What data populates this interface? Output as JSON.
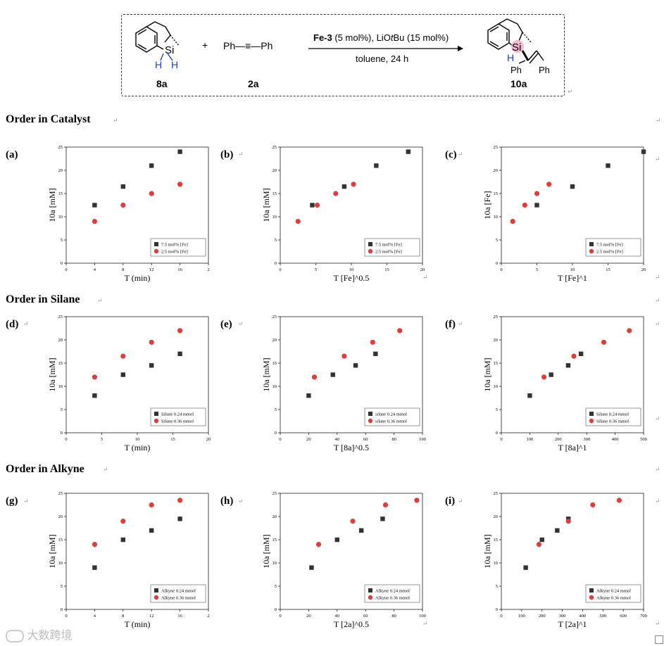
{
  "scheme": {
    "reactant1_label": "8a",
    "reactant2_label": "2a",
    "product_label": "10a",
    "reactant2_formula": "Ph—≡—Ph",
    "plus": "+",
    "condition_catalyst": "Fe-3",
    "condition_catalyst_rest": " (5 mol%), LiO",
    "condition_tBu": "t",
    "condition_tail": "Bu (15 mol%)",
    "condition_solvent": "toluene, 24 h",
    "si": "Si",
    "h": "H",
    "ph": "Ph"
  },
  "sections": [
    {
      "title": "Order in Catalyst"
    },
    {
      "title": "Order in Silane"
    },
    {
      "title": "Order in Alkyne"
    }
  ],
  "panel_labels": [
    "(a)",
    "(b)",
    "(c)",
    "(d)",
    "(e)",
    "(f)",
    "(g)",
    "(h)",
    "(i)"
  ],
  "return_mark": "↵",
  "watermark": "大数跨境",
  "chart_data": [
    {
      "type": "scatter",
      "xlabel": "T (min)",
      "ylabel": "10a [mM]",
      "xlim": [
        0,
        2
      ],
      "xticks": [
        0,
        0.4,
        0.8,
        1.2,
        1.6,
        2
      ],
      "xticklabels": [
        "0",
        "4",
        "8",
        "12",
        "16",
        "2"
      ],
      "ylim": [
        0,
        25
      ],
      "yticks": [
        0,
        5,
        10,
        15,
        20,
        25
      ],
      "series": [
        {
          "name": "7.5 mol% [Fe]",
          "color": "#333333",
          "shape": "square",
          "x": [
            0.4,
            0.8,
            1.2,
            1.6
          ],
          "y": [
            12.5,
            16.5,
            21,
            24
          ]
        },
        {
          "name": "2.5 mol% [Fe]",
          "color": "#e03c3c",
          "shape": "circle",
          "x": [
            0.4,
            0.8,
            1.2,
            1.6
          ],
          "y": [
            9,
            12.5,
            15,
            17
          ]
        }
      ]
    },
    {
      "type": "scatter",
      "xlabel": "T [Fe]^0.5",
      "ylabel": "10a [mM]",
      "xlim": [
        0,
        20
      ],
      "xticks": [
        0,
        5,
        10,
        15,
        20
      ],
      "xticklabels": [
        "0",
        "5",
        "10",
        "15",
        "20"
      ],
      "ylim": [
        0,
        25
      ],
      "yticks": [
        0,
        5,
        10,
        15,
        20,
        25
      ],
      "series": [
        {
          "name": "7.5 mol% [Fe]",
          "color": "#333333",
          "shape": "square",
          "x": [
            4.5,
            9,
            13.5,
            18
          ],
          "y": [
            12.5,
            16.5,
            21,
            24
          ]
        },
        {
          "name": "2.5 mol% [Fe]",
          "color": "#e03c3c",
          "shape": "circle",
          "x": [
            2.5,
            5.2,
            7.8,
            10.3
          ],
          "y": [
            9,
            12.5,
            15,
            17
          ]
        }
      ]
    },
    {
      "type": "scatter",
      "xlabel": "T [Fe]^1",
      "ylabel": "10a [Fe]",
      "xlim": [
        0,
        20
      ],
      "xticks": [
        0,
        5,
        10,
        15,
        20
      ],
      "xticklabels": [
        "0",
        "5",
        "10",
        "15",
        "20"
      ],
      "ylim": [
        0,
        25
      ],
      "yticks": [
        0,
        5,
        10,
        15,
        20,
        25
      ],
      "series": [
        {
          "name": "7.5 mol% [Fe]",
          "color": "#333333",
          "shape": "square",
          "x": [
            5,
            10,
            15,
            20
          ],
          "y": [
            12.5,
            16.5,
            21,
            24
          ]
        },
        {
          "name": "2.5 mol% [Fe]",
          "color": "#e03c3c",
          "shape": "circle",
          "x": [
            1.6,
            3.3,
            5,
            6.7
          ],
          "y": [
            9,
            12.5,
            15,
            17
          ]
        }
      ]
    },
    {
      "type": "scatter",
      "xlabel": "T (min)",
      "ylabel": "10a [mM]",
      "xlim": [
        0,
        20
      ],
      "xticks": [
        0,
        5,
        10,
        15,
        20
      ],
      "xticklabels": [
        "0",
        "5",
        "10",
        "15",
        "20"
      ],
      "ylim": [
        0,
        25
      ],
      "yticks": [
        0,
        5,
        10,
        15,
        20,
        25
      ],
      "series": [
        {
          "name": "Silane 0.24 mmol",
          "color": "#333333",
          "shape": "square",
          "x": [
            4,
            8,
            12,
            16
          ],
          "y": [
            8,
            12.5,
            14.5,
            17
          ]
        },
        {
          "name": "Silane 0.36 mmol",
          "color": "#e03c3c",
          "shape": "circle",
          "x": [
            4,
            8,
            12,
            16
          ],
          "y": [
            12,
            16.5,
            19.5,
            22
          ]
        }
      ]
    },
    {
      "type": "scatter",
      "xlabel": "T [8a]^0.5",
      "ylabel": "10a [mM]",
      "xlim": [
        0,
        100
      ],
      "xticks": [
        0,
        20,
        40,
        60,
        80,
        100
      ],
      "xticklabels": [
        "0",
        "20",
        "40",
        "60",
        "80",
        "100"
      ],
      "ylim": [
        0,
        25
      ],
      "yticks": [
        0,
        5,
        10,
        15,
        20,
        25
      ],
      "series": [
        {
          "name": "silane 0.24 mmol",
          "color": "#333333",
          "shape": "square",
          "x": [
            20,
            37,
            53,
            67
          ],
          "y": [
            8,
            12.5,
            14.5,
            17
          ]
        },
        {
          "name": "silane 0.36 mmol",
          "color": "#e03c3c",
          "shape": "circle",
          "x": [
            24,
            45,
            65,
            84
          ],
          "y": [
            12,
            16.5,
            19.5,
            22
          ]
        }
      ]
    },
    {
      "type": "scatter",
      "xlabel": "T [8a]^1",
      "ylabel": "10a [mM]",
      "xlim": [
        0,
        500
      ],
      "xticks": [
        0,
        100,
        200,
        300,
        400,
        500
      ],
      "xticklabels": [
        "0",
        "100",
        "200",
        "300",
        "400",
        "500"
      ],
      "ylim": [
        0,
        25
      ],
      "yticks": [
        0,
        5,
        10,
        15,
        20,
        25
      ],
      "series": [
        {
          "name": "Silane 0.24 mmol",
          "color": "#333333",
          "shape": "square",
          "x": [
            100,
            175,
            235,
            280
          ],
          "y": [
            8,
            12.5,
            14.5,
            17
          ]
        },
        {
          "name": "Silane 0.36 mmol",
          "color": "#e03c3c",
          "shape": "circle",
          "x": [
            150,
            255,
            360,
            450
          ],
          "y": [
            12,
            16.5,
            19.5,
            22
          ]
        }
      ]
    },
    {
      "type": "scatter",
      "xlabel": "T (min)",
      "ylabel": "10a [mM]",
      "xlim": [
        0,
        2
      ],
      "xticks": [
        0,
        0.4,
        0.8,
        1.2,
        1.6,
        2
      ],
      "xticklabels": [
        "0",
        "4",
        "8",
        "12",
        "16",
        "2"
      ],
      "ylim": [
        0,
        25
      ],
      "yticks": [
        0,
        5,
        10,
        15,
        20,
        25
      ],
      "series": [
        {
          "name": "Alkyne 0.24 mmol",
          "color": "#333333",
          "shape": "square",
          "x": [
            0.4,
            0.8,
            1.2,
            1.6
          ],
          "y": [
            9,
            15,
            17,
            19.5
          ]
        },
        {
          "name": "Alkyne 0.36 mmol",
          "color": "#e03c3c",
          "shape": "circle",
          "x": [
            0.4,
            0.8,
            1.2,
            1.6
          ],
          "y": [
            14,
            19,
            22.5,
            23.5
          ]
        }
      ]
    },
    {
      "type": "scatter",
      "xlabel": "T [2a]^0.5",
      "ylabel": "10a [mM]",
      "xlim": [
        0,
        100
      ],
      "xticks": [
        0,
        20,
        40,
        60,
        80,
        100
      ],
      "xticklabels": [
        "0",
        "20",
        "40",
        "60",
        "80",
        "100"
      ],
      "ylim": [
        0,
        25
      ],
      "yticks": [
        0,
        5,
        10,
        15,
        20,
        25
      ],
      "series": [
        {
          "name": "Alkyne 0.24 mmol",
          "color": "#333333",
          "shape": "square",
          "x": [
            22,
            40,
            57,
            72
          ],
          "y": [
            9,
            15,
            17,
            19.5
          ]
        },
        {
          "name": "Alkyne 0.36 mmol",
          "color": "#e03c3c",
          "shape": "circle",
          "x": [
            27,
            51,
            74,
            96
          ],
          "y": [
            14,
            19,
            22.5,
            23.5
          ]
        }
      ]
    },
    {
      "type": "scatter",
      "xlabel": "T [2a]^1",
      "ylabel": "10a [mM]",
      "xlim": [
        0,
        700
      ],
      "xticks": [
        0,
        100,
        200,
        300,
        400,
        500,
        600,
        700
      ],
      "xticklabels": [
        "0",
        "100",
        "200",
        "300",
        "400",
        "500",
        "600",
        "700"
      ],
      "ylim": [
        0,
        25
      ],
      "yticks": [
        0,
        5,
        10,
        15,
        20,
        25
      ],
      "series": [
        {
          "name": "Alkyne 0.24 mmol",
          "color": "#333333",
          "shape": "square",
          "x": [
            120,
            200,
            275,
            330
          ],
          "y": [
            9,
            15,
            17,
            19.5
          ]
        },
        {
          "name": "Alkyne 0.36 mmol",
          "color": "#e03c3c",
          "shape": "circle",
          "x": [
            185,
            330,
            450,
            580
          ],
          "y": [
            14,
            19,
            22.5,
            23.5
          ]
        }
      ]
    }
  ]
}
